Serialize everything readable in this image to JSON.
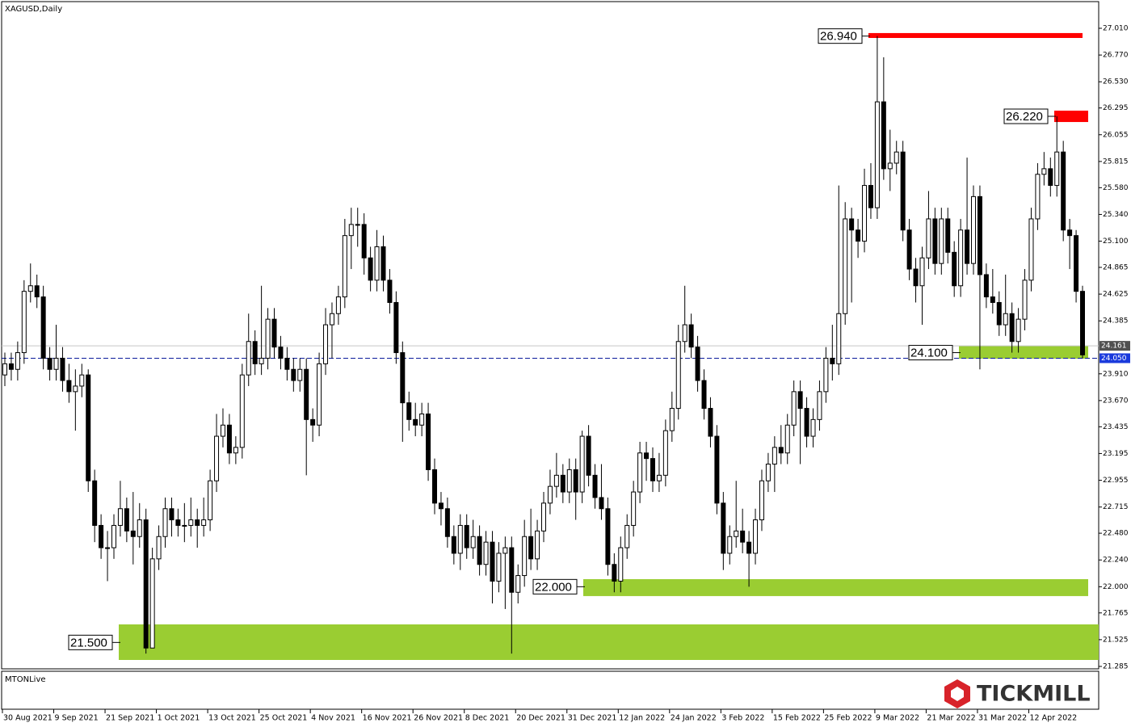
{
  "chart_data": {
    "type": "candlestick",
    "title": "XAGUSD,Daily",
    "subwindow_label": "MTONLive",
    "brand": "TICKMILL",
    "categories": [
      "30 Aug 2021",
      null,
      null,
      null,
      null,
      null,
      null,
      null,
      "9 Sep 2021",
      null,
      null,
      null,
      null,
      null,
      null,
      null,
      "21 Sep 2021",
      null,
      null,
      null,
      null,
      null,
      null,
      null,
      "1 Oct 2021",
      null,
      null,
      null,
      null,
      null,
      null,
      null,
      "13 Oct 2021",
      null,
      null,
      null,
      null,
      null,
      null,
      null,
      "25 Oct 2021",
      null,
      null,
      null,
      null,
      null,
      null,
      null,
      "4 Nov 2021",
      null,
      null,
      null,
      null,
      null,
      null,
      null,
      "16 Nov 2021",
      null,
      null,
      null,
      null,
      null,
      null,
      null,
      "26 Nov 2021",
      null,
      null,
      null,
      null,
      null,
      null,
      null,
      "8 Dec 2021",
      null,
      null,
      null,
      null,
      null,
      null,
      null,
      "20 Dec 2021",
      null,
      null,
      null,
      null,
      null,
      null,
      null,
      "31 Dec 2021",
      null,
      null,
      null,
      null,
      null,
      null,
      null,
      "12 Jan 2022",
      null,
      null,
      null,
      null,
      null,
      null,
      null,
      "24 Jan 2022",
      null,
      null,
      null,
      null,
      null,
      null,
      null,
      "3 Feb 2022",
      null,
      null,
      null,
      null,
      null,
      null,
      null,
      "15 Feb 2022",
      null,
      null,
      null,
      null,
      null,
      null,
      null,
      "25 Feb 2022",
      null,
      null,
      null,
      null,
      null,
      null,
      null,
      "9 Mar 2022",
      null,
      null,
      null,
      null,
      null,
      null,
      null,
      "21 Mar 2022",
      null,
      null,
      null,
      null,
      null,
      null,
      null,
      "31 Mar 2022",
      null,
      null,
      null,
      null,
      null,
      null,
      null,
      "12 Apr 2022",
      null,
      null,
      null,
      null,
      null,
      null,
      null,
      null
    ],
    "ohlc": [
      [
        23.9,
        24.1,
        23.8,
        24.0
      ],
      [
        24.0,
        24.1,
        23.85,
        23.95
      ],
      [
        23.95,
        24.2,
        23.85,
        24.1
      ],
      [
        24.1,
        24.75,
        24.0,
        24.65
      ],
      [
        24.65,
        24.9,
        24.55,
        24.7
      ],
      [
        24.7,
        24.8,
        24.5,
        24.6
      ],
      [
        24.6,
        24.7,
        23.95,
        24.05
      ],
      [
        24.05,
        24.15,
        23.85,
        23.95
      ],
      [
        23.95,
        24.35,
        23.85,
        24.05
      ],
      [
        24.05,
        24.15,
        23.75,
        23.85
      ],
      [
        23.85,
        24.0,
        23.65,
        23.75
      ],
      [
        23.75,
        23.95,
        23.4,
        23.8
      ],
      [
        23.8,
        24.0,
        23.7,
        23.9
      ],
      [
        23.9,
        23.95,
        22.85,
        22.95
      ],
      [
        22.95,
        23.05,
        22.4,
        22.55
      ],
      [
        22.55,
        22.65,
        22.25,
        22.35
      ],
      [
        22.35,
        22.5,
        22.05,
        22.35
      ],
      [
        22.35,
        22.65,
        22.25,
        22.55
      ],
      [
        22.55,
        22.95,
        22.45,
        22.7
      ],
      [
        22.7,
        22.8,
        22.4,
        22.5
      ],
      [
        22.5,
        22.85,
        22.2,
        22.45
      ],
      [
        22.45,
        22.75,
        22.35,
        22.6
      ],
      [
        22.6,
        22.7,
        21.4,
        21.45
      ],
      [
        21.45,
        22.35,
        21.45,
        22.25
      ],
      [
        22.25,
        22.55,
        22.15,
        22.45
      ],
      [
        22.45,
        22.8,
        22.35,
        22.7
      ],
      [
        22.7,
        22.8,
        22.45,
        22.6
      ],
      [
        22.6,
        22.7,
        22.45,
        22.55
      ],
      [
        22.55,
        22.75,
        22.4,
        22.55
      ],
      [
        22.55,
        22.8,
        22.45,
        22.6
      ],
      [
        22.6,
        22.7,
        22.35,
        22.55
      ],
      [
        22.55,
        22.8,
        22.45,
        22.6
      ],
      [
        22.6,
        23.05,
        22.5,
        22.95
      ],
      [
        22.95,
        23.55,
        22.85,
        23.35
      ],
      [
        23.35,
        23.6,
        23.25,
        23.45
      ],
      [
        23.45,
        23.55,
        23.1,
        23.2
      ],
      [
        23.2,
        23.35,
        23.1,
        23.25
      ],
      [
        23.25,
        24.0,
        23.15,
        23.9
      ],
      [
        23.9,
        24.45,
        23.8,
        24.2
      ],
      [
        24.2,
        24.3,
        23.9,
        24.0
      ],
      [
        24.0,
        24.7,
        23.9,
        24.05
      ],
      [
        24.05,
        24.5,
        23.95,
        24.4
      ],
      [
        24.4,
        24.5,
        24.05,
        24.15
      ],
      [
        24.15,
        24.25,
        23.95,
        24.05
      ],
      [
        24.05,
        24.15,
        23.85,
        23.95
      ],
      [
        23.95,
        24.05,
        23.75,
        23.85
      ],
      [
        23.85,
        24.05,
        23.75,
        23.95
      ],
      [
        23.95,
        24.05,
        23.0,
        23.5
      ],
      [
        23.5,
        23.6,
        23.3,
        23.45
      ],
      [
        23.45,
        24.1,
        23.35,
        24.0
      ],
      [
        24.0,
        24.5,
        23.9,
        24.35
      ],
      [
        24.35,
        24.55,
        24.05,
        24.45
      ],
      [
        24.45,
        24.7,
        24.35,
        24.6
      ],
      [
        24.6,
        25.3,
        24.5,
        25.15
      ],
      [
        25.15,
        25.4,
        24.85,
        25.25
      ],
      [
        25.25,
        25.4,
        25.05,
        25.25
      ],
      [
        25.25,
        25.35,
        24.8,
        24.95
      ],
      [
        24.95,
        25.05,
        24.65,
        24.75
      ],
      [
        24.75,
        25.2,
        24.65,
        25.05
      ],
      [
        25.05,
        25.15,
        24.65,
        24.75
      ],
      [
        24.75,
        24.85,
        24.45,
        24.55
      ],
      [
        24.55,
        24.65,
        24.0,
        24.1
      ],
      [
        24.1,
        24.2,
        23.3,
        23.65
      ],
      [
        23.65,
        23.75,
        23.4,
        23.5
      ],
      [
        23.5,
        23.65,
        23.35,
        23.45
      ],
      [
        23.45,
        23.65,
        23.35,
        23.55
      ],
      [
        23.55,
        23.65,
        22.95,
        23.05
      ],
      [
        23.05,
        23.15,
        22.65,
        22.75
      ],
      [
        22.75,
        22.85,
        22.55,
        22.7
      ],
      [
        22.7,
        22.8,
        22.35,
        22.45
      ],
      [
        22.45,
        22.55,
        22.2,
        22.3
      ],
      [
        22.3,
        22.65,
        22.15,
        22.55
      ],
      [
        22.55,
        22.65,
        22.25,
        22.35
      ],
      [
        22.35,
        22.6,
        22.25,
        22.45
      ],
      [
        22.45,
        22.55,
        22.1,
        22.2
      ],
      [
        22.2,
        22.5,
        22.1,
        22.4
      ],
      [
        22.4,
        22.5,
        21.85,
        22.05
      ],
      [
        22.05,
        22.4,
        21.95,
        22.3
      ],
      [
        22.3,
        22.45,
        21.8,
        22.35
      ],
      [
        22.35,
        22.45,
        21.4,
        21.95
      ],
      [
        21.95,
        22.2,
        21.85,
        22.1
      ],
      [
        22.1,
        22.6,
        22.0,
        22.45
      ],
      [
        22.45,
        22.7,
        22.15,
        22.25
      ],
      [
        22.25,
        22.6,
        22.15,
        22.5
      ],
      [
        22.5,
        22.85,
        22.4,
        22.75
      ],
      [
        22.75,
        23.05,
        22.65,
        22.9
      ],
      [
        22.9,
        23.2,
        22.8,
        23.0
      ],
      [
        23.0,
        23.1,
        22.75,
        22.85
      ],
      [
        22.85,
        23.15,
        22.75,
        23.05
      ],
      [
        23.05,
        23.15,
        22.6,
        22.85
      ],
      [
        22.85,
        23.4,
        22.75,
        23.35
      ],
      [
        23.35,
        23.45,
        22.9,
        23.0
      ],
      [
        23.0,
        23.1,
        22.7,
        22.8
      ],
      [
        22.8,
        23.1,
        22.6,
        22.7
      ],
      [
        22.7,
        22.8,
        22.1,
        22.2
      ],
      [
        22.2,
        22.3,
        21.95,
        22.05
      ],
      [
        22.05,
        22.45,
        21.95,
        22.35
      ],
      [
        22.35,
        22.65,
        22.25,
        22.55
      ],
      [
        22.55,
        22.95,
        22.45,
        22.85
      ],
      [
        22.85,
        23.3,
        22.75,
        23.2
      ],
      [
        23.2,
        23.3,
        22.95,
        23.15
      ],
      [
        23.15,
        23.25,
        22.85,
        22.95
      ],
      [
        22.95,
        23.2,
        22.85,
        23.0
      ],
      [
        23.0,
        23.5,
        22.9,
        23.4
      ],
      [
        23.4,
        23.75,
        23.3,
        23.6
      ],
      [
        23.6,
        24.35,
        23.5,
        24.2
      ],
      [
        24.2,
        24.7,
        24.1,
        24.35
      ],
      [
        24.35,
        24.45,
        24.05,
        24.15
      ],
      [
        24.15,
        24.25,
        23.75,
        23.85
      ],
      [
        23.85,
        23.95,
        23.5,
        23.6
      ],
      [
        23.6,
        23.7,
        23.25,
        23.35
      ],
      [
        23.35,
        23.45,
        22.65,
        22.75
      ],
      [
        22.75,
        22.85,
        22.15,
        22.3
      ],
      [
        22.3,
        22.55,
        22.2,
        22.45
      ],
      [
        22.45,
        22.95,
        22.35,
        22.5
      ],
      [
        22.5,
        22.7,
        22.3,
        22.4
      ],
      [
        22.4,
        22.5,
        22.0,
        22.3
      ],
      [
        22.3,
        22.7,
        22.2,
        22.6
      ],
      [
        22.6,
        23.05,
        22.5,
        22.95
      ],
      [
        22.95,
        23.2,
        22.85,
        23.1
      ],
      [
        23.1,
        23.35,
        22.85,
        23.25
      ],
      [
        23.25,
        23.45,
        23.1,
        23.2
      ],
      [
        23.2,
        23.55,
        23.1,
        23.45
      ],
      [
        23.45,
        23.85,
        23.35,
        23.75
      ],
      [
        23.75,
        23.85,
        23.1,
        23.6
      ],
      [
        23.6,
        23.7,
        23.25,
        23.35
      ],
      [
        23.35,
        23.6,
        23.25,
        23.5
      ],
      [
        23.5,
        23.85,
        23.4,
        23.75
      ],
      [
        23.75,
        24.15,
        23.65,
        24.05
      ],
      [
        24.05,
        24.35,
        23.85,
        24.0
      ],
      [
        24.0,
        25.6,
        23.9,
        24.45
      ],
      [
        24.45,
        25.45,
        24.35,
        25.3
      ],
      [
        25.3,
        25.4,
        24.55,
        25.2
      ],
      [
        25.2,
        25.3,
        24.95,
        25.1
      ],
      [
        25.1,
        25.75,
        25.0,
        25.6
      ],
      [
        25.6,
        25.8,
        25.3,
        25.4
      ],
      [
        25.4,
        26.94,
        25.3,
        26.35
      ],
      [
        26.35,
        26.75,
        25.65,
        25.75
      ],
      [
        25.75,
        26.1,
        25.55,
        25.8
      ],
      [
        25.8,
        26.0,
        25.7,
        25.9
      ],
      [
        25.9,
        26.0,
        25.1,
        25.2
      ],
      [
        25.2,
        25.3,
        24.75,
        24.85
      ],
      [
        24.85,
        24.95,
        24.55,
        24.7
      ],
      [
        24.7,
        25.05,
        24.35,
        24.95
      ],
      [
        24.95,
        25.55,
        24.85,
        25.3
      ],
      [
        25.3,
        25.4,
        24.8,
        24.9
      ],
      [
        24.9,
        25.4,
        24.8,
        25.3
      ],
      [
        25.3,
        25.4,
        24.9,
        25.0
      ],
      [
        25.0,
        25.1,
        24.6,
        24.7
      ],
      [
        24.7,
        25.3,
        24.6,
        25.2
      ],
      [
        25.2,
        25.85,
        24.8,
        24.9
      ],
      [
        24.9,
        25.6,
        24.8,
        25.5
      ],
      [
        25.5,
        25.6,
        23.95,
        24.8
      ],
      [
        24.8,
        24.9,
        24.5,
        24.6
      ],
      [
        24.6,
        24.85,
        24.45,
        24.55
      ],
      [
        24.55,
        24.65,
        24.25,
        24.35
      ],
      [
        24.35,
        24.8,
        24.25,
        24.45
      ],
      [
        24.45,
        24.55,
        24.1,
        24.2
      ],
      [
        24.2,
        24.5,
        24.1,
        24.4
      ],
      [
        24.4,
        24.85,
        24.3,
        24.75
      ],
      [
        24.75,
        25.4,
        24.65,
        25.3
      ],
      [
        25.3,
        25.8,
        25.2,
        25.7
      ],
      [
        25.7,
        25.9,
        25.6,
        25.75
      ],
      [
        25.75,
        25.85,
        25.5,
        25.6
      ],
      [
        25.6,
        26.22,
        25.5,
        25.9
      ],
      [
        25.9,
        26.0,
        25.1,
        25.2
      ],
      [
        25.2,
        25.3,
        24.85,
        25.15
      ],
      [
        25.15,
        25.2,
        24.55,
        24.65
      ],
      [
        24.65,
        24.7,
        24.05,
        24.08
      ]
    ],
    "ylim": [
      21.285,
      27.01
    ],
    "yticks": [
      {
        "value": 27.01,
        "label": "27.010"
      },
      {
        "value": 26.77,
        "label": "26.770"
      },
      {
        "value": 26.53,
        "label": "26.530"
      },
      {
        "value": 26.295,
        "label": "26.295"
      },
      {
        "value": 26.055,
        "label": "26.055"
      },
      {
        "value": 25.815,
        "label": "25.815"
      },
      {
        "value": 25.58,
        "label": "25.580"
      },
      {
        "value": 25.34,
        "label": "25.340"
      },
      {
        "value": 25.1,
        "label": "25.100"
      },
      {
        "value": 24.865,
        "label": "24.865"
      },
      {
        "value": 24.625,
        "label": "24.625"
      },
      {
        "value": 24.385,
        "label": "24.385"
      },
      {
        "value": 23.91,
        "label": "23.910"
      },
      {
        "value": 23.67,
        "label": "23.670"
      },
      {
        "value": 23.435,
        "label": "23.435"
      },
      {
        "value": 23.195,
        "label": "23.195"
      },
      {
        "value": 22.955,
        "label": "22.955"
      },
      {
        "value": 22.715,
        "label": "22.715"
      },
      {
        "value": 22.48,
        "label": "22.480"
      },
      {
        "value": 22.24,
        "label": "22.240"
      },
      {
        "value": 22.0,
        "label": "22.000"
      },
      {
        "value": 21.765,
        "label": "21.765"
      },
      {
        "value": 21.525,
        "label": "21.525"
      },
      {
        "value": 21.285,
        "label": "21.285"
      }
    ],
    "price_lines": [
      {
        "value": 24.161,
        "label": "24.161",
        "color": "#c8c8c8",
        "bg": "#505050"
      },
      {
        "value": 24.05,
        "label": "24.050",
        "color": "#0a1a9a",
        "bg": "#1a3adc"
      }
    ],
    "zones": [
      {
        "value": 21.5,
        "label": "21.500",
        "low": 21.343,
        "high": 21.662,
        "color": "#9acd32"
      },
      {
        "value": 22.0,
        "label": "22.000",
        "low": 21.916,
        "high": 22.068,
        "color": "#9acd32"
      },
      {
        "value": 24.1,
        "label": "24.100",
        "low": 24.046,
        "high": 24.162,
        "color": "#9acd32"
      },
      {
        "value": 26.94,
        "label": "26.940",
        "low": 26.923,
        "high": 26.967,
        "color": "#ff0000"
      },
      {
        "value": 26.22,
        "label": "26.220",
        "low": 26.169,
        "high": 26.271,
        "color": "#ff0000"
      }
    ],
    "bull_color": "#ffffff",
    "bear_color": "#000000"
  }
}
